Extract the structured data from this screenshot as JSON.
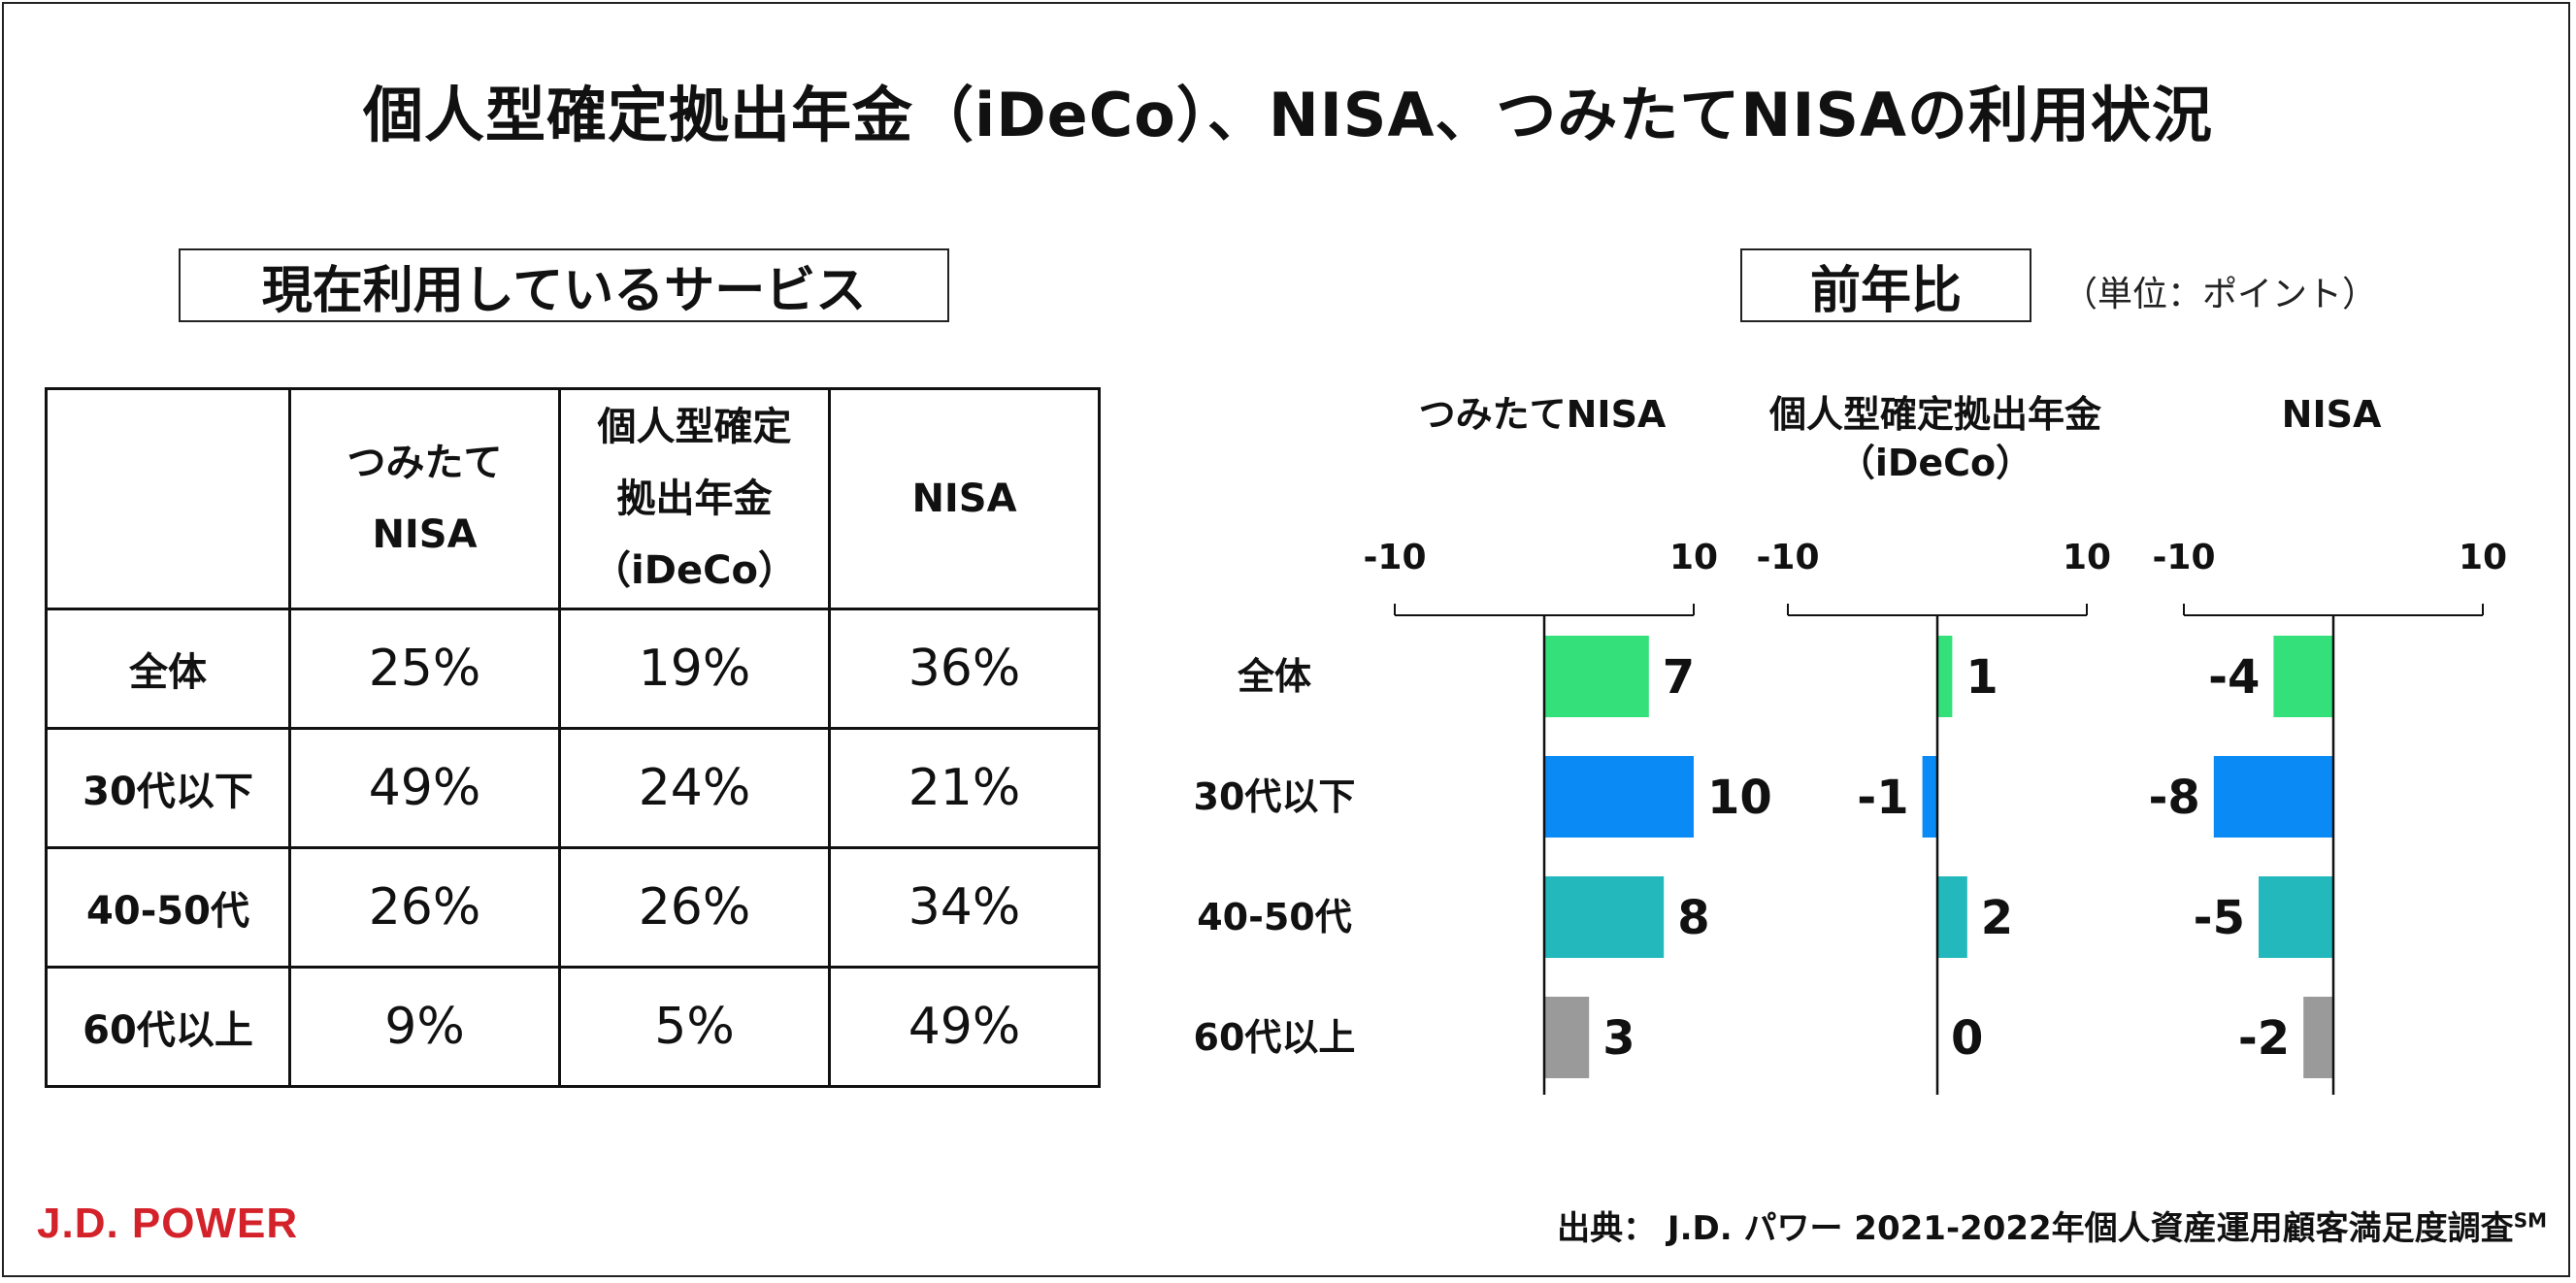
{
  "title": "個人型確定拠出年金（iDeCo）、NISA、つみたてNISAの利用状況",
  "left_panel": {
    "label": "現在利用しているサービス",
    "table": {
      "headers": [
        "",
        "つみたて\nNISA",
        "個人型確定\n拠出年金\n（iDeCo）",
        "NISA"
      ],
      "rows": [
        {
          "label": "全体",
          "values": [
            "25%",
            "19%",
            "36%"
          ]
        },
        {
          "label": "30代以下",
          "values": [
            "49%",
            "24%",
            "21%"
          ]
        },
        {
          "label": "40-50代",
          "values": [
            "26%",
            "26%",
            "34%"
          ]
        },
        {
          "label": "60代以上",
          "values": [
            "9%",
            "5%",
            "49%"
          ]
        }
      ]
    }
  },
  "right_panel": {
    "label": "前年比",
    "unit_note": "（単位：ポイント）"
  },
  "chart_data": {
    "type": "bar",
    "orientation": "horizontal",
    "categories": [
      "全体",
      "30代以下",
      "40-50代",
      "60代以上"
    ],
    "xlim": [
      -10,
      10
    ],
    "tick_labels": [
      "-10",
      "10"
    ],
    "category_colors": [
      "#33e07a",
      "#0a8af5",
      "#22b8bc",
      "#9a9a9a"
    ],
    "series": [
      {
        "name": "つみたてNISA",
        "values": [
          7,
          10,
          8,
          3
        ]
      },
      {
        "name": "個人型確定拠出年金\n（iDeCo）",
        "values": [
          1,
          -1,
          2,
          0
        ]
      },
      {
        "name": "NISA",
        "values": [
          -4,
          -8,
          -5,
          -2
        ]
      }
    ]
  },
  "source": {
    "text": "出典：  J.D. パワー 2021-2022年個人資産運用顧客満足度調査",
    "superscript": "SM"
  },
  "logo": {
    "text": "J.D. POWER",
    "color": "#d3222a"
  }
}
